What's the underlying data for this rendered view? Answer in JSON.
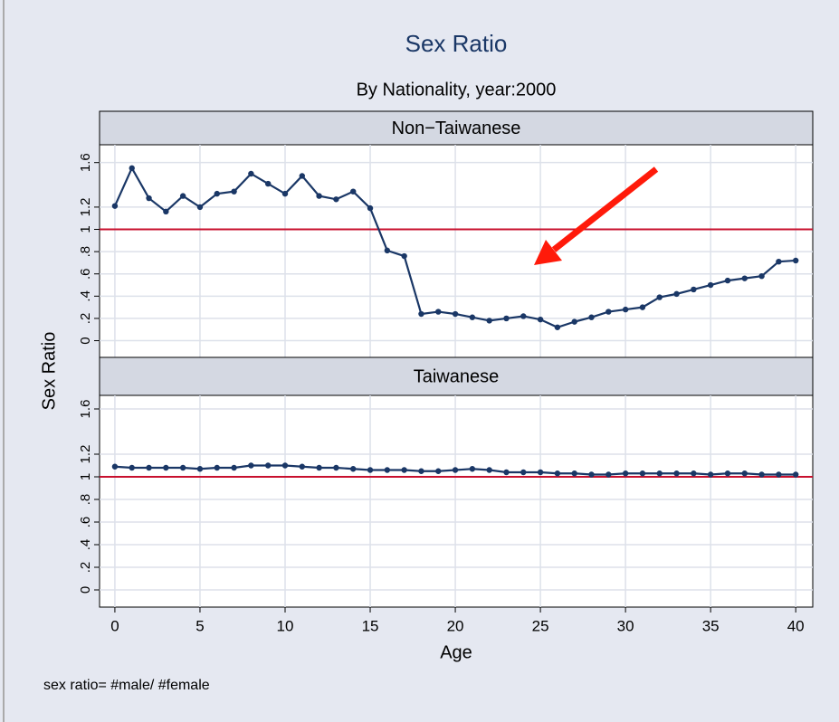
{
  "figure": {
    "title": "Sex Ratio",
    "subtitle": "By Nationality, year:2000",
    "xlabel": "Age",
    "ylabel": "Sex Ratio",
    "note": "sex ratio= #male/ #female"
  },
  "chart_data": [
    {
      "type": "line",
      "title": "Non−Taiwanese",
      "color": "#1a3766",
      "refline": 1,
      "refline_color": "#c8102e",
      "grid": true,
      "x": [
        0,
        1,
        2,
        3,
        4,
        5,
        6,
        7,
        8,
        9,
        10,
        11,
        12,
        13,
        14,
        15,
        16,
        17,
        18,
        19,
        20,
        21,
        22,
        23,
        24,
        25,
        26,
        27,
        28,
        29,
        30,
        31,
        32,
        33,
        34,
        35,
        36,
        37,
        38,
        39,
        40
      ],
      "values": [
        1.21,
        1.55,
        1.28,
        1.16,
        1.3,
        1.2,
        1.32,
        1.34,
        1.5,
        1.41,
        1.32,
        1.48,
        1.3,
        1.27,
        1.34,
        1.19,
        0.81,
        0.76,
        0.24,
        0.26,
        0.24,
        0.21,
        0.18,
        0.2,
        0.22,
        0.19,
        0.12,
        0.17,
        0.21,
        0.26,
        0.28,
        0.3,
        0.39,
        0.42,
        0.46,
        0.5,
        0.54,
        0.56,
        0.58,
        0.71,
        0.72
      ],
      "xlim": [
        -0.9,
        41
      ],
      "xticks": [
        0,
        5,
        10,
        15,
        20,
        25,
        30,
        35,
        40
      ],
      "ylim": [
        -0.15,
        1.76
      ],
      "yticks": [
        0,
        {
          "value": 0.2,
          "label": ".2"
        },
        {
          "value": 0.4,
          "label": ".4"
        },
        {
          "value": 0.6,
          "label": ".6"
        },
        {
          "value": 0.8,
          "label": ".8"
        },
        1,
        1.2,
        1.6
      ]
    },
    {
      "type": "line",
      "title": "Taiwanese",
      "color": "#1a3766",
      "refline": 1,
      "refline_color": "#c8102e",
      "grid": true,
      "x": [
        0,
        1,
        2,
        3,
        4,
        5,
        6,
        7,
        8,
        9,
        10,
        11,
        12,
        13,
        14,
        15,
        16,
        17,
        18,
        19,
        20,
        21,
        22,
        23,
        24,
        25,
        26,
        27,
        28,
        29,
        30,
        31,
        32,
        33,
        34,
        35,
        36,
        37,
        38,
        39,
        40
      ],
      "values": [
        1.09,
        1.08,
        1.08,
        1.08,
        1.08,
        1.07,
        1.08,
        1.08,
        1.1,
        1.1,
        1.1,
        1.09,
        1.08,
        1.08,
        1.07,
        1.06,
        1.06,
        1.06,
        1.05,
        1.05,
        1.06,
        1.07,
        1.06,
        1.04,
        1.04,
        1.04,
        1.03,
        1.03,
        1.02,
        1.02,
        1.03,
        1.03,
        1.03,
        1.03,
        1.03,
        1.02,
        1.03,
        1.03,
        1.02,
        1.02,
        1.02
      ],
      "xlim": [
        -0.9,
        41
      ],
      "xticks": [
        0,
        5,
        10,
        15,
        20,
        25,
        30,
        35,
        40
      ],
      "ylim": [
        -0.152,
        1.72
      ],
      "yticks": [
        0,
        {
          "value": 0.2,
          "label": ".2"
        },
        {
          "value": 0.4,
          "label": ".4"
        },
        {
          "value": 0.6,
          "label": ".6"
        },
        {
          "value": 0.8,
          "label": ".8"
        },
        1,
        1.2,
        1.6
      ]
    }
  ]
}
